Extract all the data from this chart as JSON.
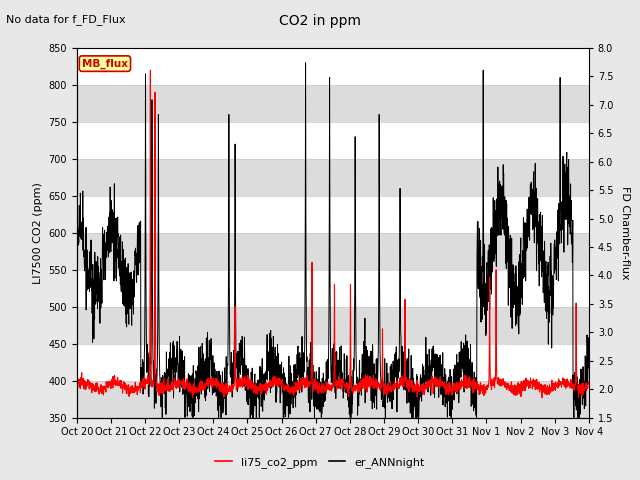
{
  "title": "CO2 in ppm",
  "top_label": "No data for f_FD_Flux",
  "ylabel_left": "LI7500 CO2 (ppm)",
  "ylabel_right": "FD Chamber-flux",
  "ylim_left": [
    350,
    850
  ],
  "ylim_right": [
    1.5,
    8.0
  ],
  "yticks_left": [
    350,
    400,
    450,
    500,
    550,
    600,
    650,
    700,
    750,
    800,
    850
  ],
  "yticks_right": [
    1.5,
    2.0,
    2.5,
    3.0,
    3.5,
    4.0,
    4.5,
    5.0,
    5.5,
    6.0,
    6.5,
    7.0,
    7.5,
    8.0
  ],
  "xtick_labels": [
    "Oct 20",
    "Oct 21",
    "Oct 22",
    "Oct 23",
    "Oct 24",
    "Oct 25",
    "Oct 26",
    "Oct 27",
    "Oct 28",
    "Oct 29",
    "Oct 30",
    "Oct 31",
    "Nov 1",
    "Nov 2",
    "Nov 3",
    "Nov 4"
  ],
  "legend_entries": [
    "li75_co2_ppm",
    "er_ANNnight"
  ],
  "legend_colors": [
    "red",
    "black"
  ],
  "mb_flux_box_color": "#ffff99",
  "mb_flux_text_color": "#cc0000",
  "background_color": "#e8e8e8",
  "plot_bg_color": "#ffffff",
  "band_color": "#dcdcdc",
  "grid_line_color": "#c8c8c8"
}
